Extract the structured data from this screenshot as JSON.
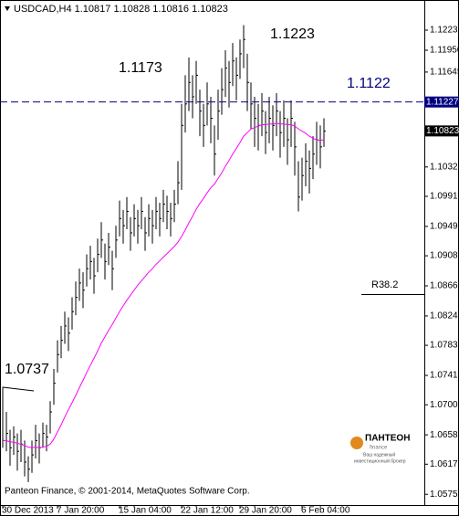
{
  "chart_data": {
    "type": "hlc",
    "title": "USDCAD,H4  1.10817 1.10828 1.10816 1.10823",
    "annotations": [
      "1.1223",
      "1.1173",
      "1.1122",
      "1.0737",
      "R38.2"
    ],
    "copyright": "Panteon Finance, © 2001-2014, MetaQuotes Software Corp.",
    "logo": {
      "name": "ПАНТЕОН",
      "sub": "finance",
      "slogan1": "Ваш надежный",
      "slogan2": "инвестиционный брокер"
    },
    "hline_value": 1.11227,
    "last_price": 1.10823,
    "color": "#000000",
    "ma_color": "#ff00ff",
    "hline_color": "#000080",
    "ylim": [
      1.056,
      1.126
    ],
    "yticks": [
      {
        "value": 1.1223,
        "label": "1.12230"
      },
      {
        "value": 1.1195,
        "label": "1.11950"
      },
      {
        "value": 1.11645,
        "label": "1.11645"
      },
      {
        "value": 1.1032,
        "label": "1.10320"
      },
      {
        "value": 1.0991,
        "label": "1.09910"
      },
      {
        "value": 1.0949,
        "label": "1.09490"
      },
      {
        "value": 1.0908,
        "label": "1.09080"
      },
      {
        "value": 1.0866,
        "label": "1.08660"
      },
      {
        "value": 1.0824,
        "label": "1.08240"
      },
      {
        "value": 1.0783,
        "label": "1.07830"
      },
      {
        "value": 1.0741,
        "label": "1.07410"
      },
      {
        "value": 1.07,
        "label": "1.07000"
      },
      {
        "value": 1.0658,
        "label": "1.06580"
      },
      {
        "value": 1.0617,
        "label": "1.06170"
      },
      {
        "value": 1.0575,
        "label": "1.05750"
      }
    ],
    "categories": [
      "30 Dec 2013",
      null,
      null,
      null,
      null,
      null,
      null,
      null,
      null,
      null,
      null,
      null,
      null,
      null,
      null,
      "7 Jan 20:00",
      null,
      null,
      null,
      null,
      null,
      null,
      null,
      null,
      null,
      null,
      null,
      null,
      null,
      null,
      null,
      null,
      "15 Jan 04:00",
      null,
      null,
      null,
      null,
      null,
      null,
      null,
      null,
      null,
      null,
      null,
      null,
      null,
      null,
      null,
      null,
      "22 Jan 12:00",
      null,
      null,
      null,
      null,
      null,
      null,
      null,
      null,
      null,
      null,
      null,
      null,
      null,
      null,
      null,
      "29 Jan 20:00",
      null,
      null,
      null,
      null,
      null,
      null,
      null,
      null,
      null,
      null,
      null,
      null,
      null,
      null,
      null,
      null,
      "6 Feb 04:00",
      null,
      null,
      null,
      null,
      null,
      null
    ],
    "high": [
      1.0725,
      1.069,
      1.0665,
      1.067,
      1.066,
      1.0665,
      1.065,
      1.0628,
      1.065,
      1.0672,
      1.066,
      1.0675,
      1.0672,
      1.0705,
      1.075,
      1.079,
      1.081,
      1.083,
      1.0822,
      1.085,
      1.0872,
      1.089,
      1.0885,
      1.091,
      1.0922,
      1.0905,
      1.0932,
      1.0955,
      1.0925,
      1.094,
      1.0915,
      1.095,
      1.0985,
      1.0972,
      1.099,
      1.0962,
      1.098,
      1.0972,
      1.099,
      1.0962,
      1.098,
      1.0972,
      1.099,
      1.0982,
      1.1,
      1.0992,
      1.0982,
      1.1,
      1.104,
      1.112,
      1.116,
      1.1185,
      1.116,
      1.118,
      1.114,
      1.112,
      1.115,
      1.113,
      1.109,
      1.114,
      1.117,
      1.1195,
      1.118,
      1.1205,
      1.1185,
      1.121,
      1.123,
      1.119,
      1.115,
      1.113,
      1.112,
      1.1135,
      1.111,
      1.113,
      1.1118,
      1.1135,
      1.111,
      1.1125,
      1.11,
      1.1125,
      1.1095,
      1.104,
      1.1045,
      1.1065,
      1.1055,
      1.1075,
      1.1095,
      1.109,
      1.11
    ],
    "low": [
      1.064,
      1.0635,
      1.0615,
      1.063,
      1.0608,
      1.062,
      1.06,
      1.0592,
      1.0605,
      1.0625,
      1.0618,
      1.064,
      1.0635,
      1.066,
      1.07,
      1.0745,
      1.0765,
      1.0785,
      1.0775,
      1.0805,
      1.0825,
      1.0845,
      1.0835,
      1.0865,
      1.0875,
      1.0855,
      1.0885,
      1.0905,
      1.0875,
      1.0895,
      1.086,
      1.0905,
      1.0935,
      1.0925,
      1.0945,
      1.0915,
      1.0935,
      1.0925,
      1.0945,
      1.0915,
      1.0935,
      1.0925,
      1.0945,
      1.0935,
      1.0955,
      1.0945,
      1.0935,
      1.0955,
      1.098,
      1.1,
      1.108,
      1.111,
      1.11,
      1.112,
      1.1075,
      1.106,
      1.109,
      1.1065,
      1.102,
      1.107,
      1.1105,
      1.113,
      1.1115,
      1.1145,
      1.1125,
      1.1155,
      1.117,
      1.111,
      1.1085,
      1.106,
      1.1055,
      1.1075,
      1.105,
      1.1065,
      1.1055,
      1.1075,
      1.1045,
      1.106,
      1.1035,
      1.106,
      1.102,
      1.097,
      1.0985,
      1.1005,
      1.0995,
      1.1015,
      1.1035,
      1.103,
      1.106
    ],
    "close": [
      1.065,
      1.066,
      1.064,
      1.0655,
      1.0635,
      1.0645,
      1.062,
      1.061,
      1.063,
      1.065,
      1.064,
      1.066,
      1.0655,
      1.069,
      1.073,
      1.077,
      1.079,
      1.081,
      1.08,
      1.083,
      1.085,
      1.087,
      1.086,
      1.089,
      1.09,
      1.088,
      1.091,
      1.093,
      1.09,
      1.092,
      1.089,
      1.093,
      1.096,
      1.095,
      1.097,
      1.094,
      1.096,
      1.095,
      1.097,
      1.094,
      1.096,
      1.095,
      1.097,
      1.096,
      1.098,
      1.097,
      1.096,
      1.098,
      1.101,
      1.109,
      1.112,
      1.115,
      1.113,
      1.116,
      1.111,
      1.109,
      1.112,
      1.11,
      1.105,
      1.111,
      1.114,
      1.117,
      1.115,
      1.118,
      1.116,
      1.119,
      1.121,
      1.115,
      1.112,
      1.11,
      1.109,
      1.111,
      1.108,
      1.11,
      1.109,
      1.111,
      1.108,
      1.11,
      1.107,
      1.11,
      1.106,
      1.099,
      1.102,
      1.104,
      1.103,
      1.105,
      1.107,
      1.106,
      1.1082
    ],
    "ma": [
      1.065,
      1.065,
      1.0648,
      1.0648,
      1.0646,
      1.0645,
      1.0643,
      1.0641,
      1.064,
      1.0641,
      1.064,
      1.0641,
      1.0642,
      1.0645,
      1.0652,
      1.0662,
      1.0672,
      1.0683,
      1.0693,
      1.0703,
      1.0713,
      1.0724,
      1.0734,
      1.0745,
      1.0755,
      1.0765,
      1.0775,
      1.0786,
      1.0795,
      1.0804,
      1.0812,
      1.0821,
      1.083,
      1.0838,
      1.0846,
      1.0853,
      1.086,
      1.0867,
      1.0873,
      1.0879,
      1.0885,
      1.089,
      1.0896,
      1.0901,
      1.0906,
      1.0911,
      1.0916,
      1.0921,
      1.0927,
      1.0935,
      1.0944,
      1.0954,
      1.0963,
      1.0973,
      1.0981,
      1.0988,
      1.0996,
      1.1003,
      1.1008,
      1.1016,
      1.1024,
      1.1033,
      1.1041,
      1.105,
      1.1058,
      1.1066,
      1.1075,
      1.108,
      1.1085,
      1.1087,
      1.1089,
      1.1091,
      1.1091,
      1.1092,
      1.1092,
      1.1093,
      1.1092,
      1.1092,
      1.1091,
      1.1091,
      1.1089,
      1.1085,
      1.1082,
      1.1079,
      1.1075,
      1.1072,
      1.107,
      1.1069,
      1.107
    ]
  }
}
